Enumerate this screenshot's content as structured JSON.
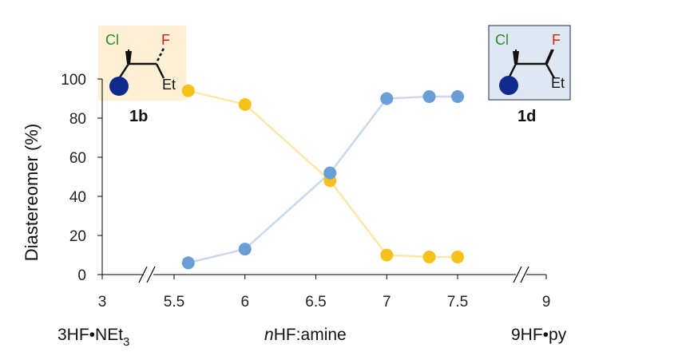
{
  "chart_data": {
    "type": "line",
    "ylabel": "Diastereomer (%)",
    "ylim": [
      0,
      100
    ],
    "yticks": [
      "0",
      "20",
      "40",
      "60",
      "80",
      "100"
    ],
    "xticks": [
      "3",
      "5.5",
      "6",
      "6.5",
      "7",
      "7.5",
      "9"
    ],
    "x_axis_breaks": "between 3 and 5.5; between 7.5 and 9",
    "grid": false,
    "x": [
      5.6,
      6.0,
      6.6,
      7.0,
      7.3,
      7.5
    ],
    "series": [
      {
        "name": "1b",
        "color": "#f5c21b",
        "line_color": "#fbe8a8",
        "values": [
          94,
          87,
          48,
          10,
          9,
          9
        ]
      },
      {
        "name": "1d",
        "color": "#6a9ed4",
        "line_color": "#c9d8ec",
        "values": [
          6,
          13,
          52,
          90,
          91,
          91
        ]
      }
    ],
    "bottom_labels": {
      "left_main": "3HF•NEt",
      "left_sub": "3",
      "center_italic": "n",
      "center_rest": "HF:amine",
      "right": "9HF•py"
    },
    "structures": [
      {
        "id": "1b",
        "atoms": [
          "Cl",
          "F",
          "Et"
        ],
        "background": "#fdf0d5",
        "atom_colors": {
          "Cl": "#2e8b2e",
          "F": "#d6241d"
        },
        "ball_color": "#0f2a8c"
      },
      {
        "id": "1d",
        "atoms": [
          "Cl",
          "F",
          "Et"
        ],
        "background": "#dfe7f2",
        "border": "#1b2a4a",
        "atom_colors": {
          "Cl": "#2e8b2e",
          "F": "#d6241d"
        },
        "ball_color": "#0f2a8c"
      }
    ]
  }
}
